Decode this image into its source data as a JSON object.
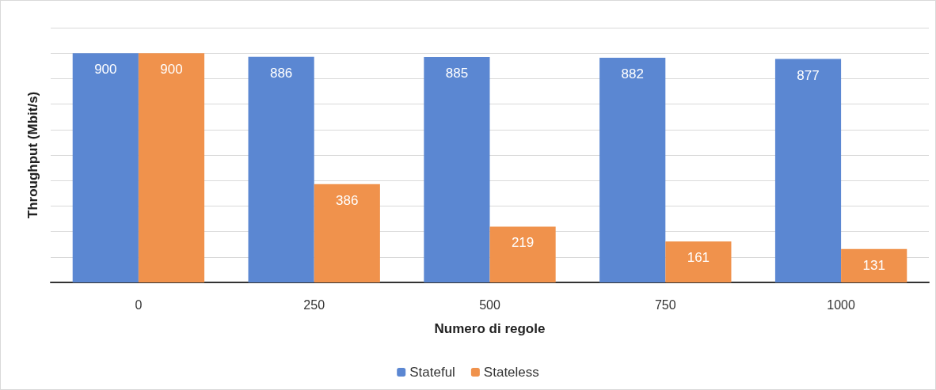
{
  "chart_data": {
    "type": "bar",
    "xlabel": "Numero di regole",
    "ylabel": "Throughput (Mbit/s)",
    "categories": [
      "0",
      "250",
      "500",
      "750",
      "1000"
    ],
    "series": [
      {
        "name": "Stateful",
        "color": "#5b87d2",
        "values": [
          900,
          886,
          885,
          882,
          877
        ]
      },
      {
        "name": "Stateless",
        "color": "#f0924c",
        "values": [
          900,
          386,
          219,
          161,
          131
        ]
      }
    ],
    "ylim": [
      0,
      1000
    ],
    "yticks": [
      {
        "value": 0,
        "label": null
      },
      {
        "value": 100,
        "label": null
      },
      {
        "value": 200,
        "label": null
      },
      {
        "value": 300,
        "label": null
      },
      {
        "value": 400,
        "label": null
      },
      {
        "value": 500,
        "label": null
      },
      {
        "value": 600,
        "label": null
      },
      {
        "value": 700,
        "label": null
      },
      {
        "value": 800,
        "label": null
      },
      {
        "value": 900,
        "label": null
      },
      {
        "value": 1000,
        "label": null
      }
    ],
    "tick_labels": "x",
    "grid": "y",
    "legend": "bottom",
    "data_labels": true
  }
}
